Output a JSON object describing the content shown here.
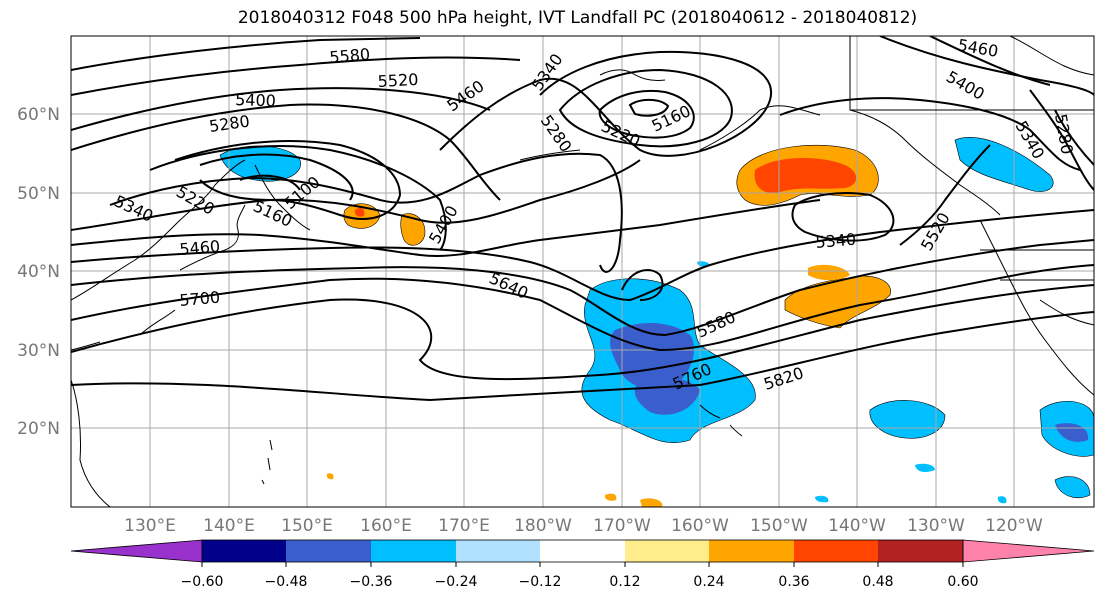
{
  "title": "2018040312 F048 500 hPa height, IVT Landfall PC (2018040612 - 2018040812)",
  "map": {
    "lat_labels": [
      "60°N",
      "50°N",
      "40°N",
      "30°N",
      "20°N"
    ],
    "lon_labels": [
      "130°E",
      "140°E",
      "150°E",
      "160°E",
      "170°E",
      "180°W",
      "170°W",
      "160°W",
      "150°W",
      "140°W",
      "130°W",
      "120°W"
    ],
    "contour_labels": [
      "5580",
      "5520",
      "5460",
      "5400",
      "5340",
      "5280",
      "5220",
      "5160",
      "5100",
      "5460",
      "5700",
      "5640",
      "5580",
      "5760",
      "5820",
      "5400",
      "5340",
      "5280",
      "5220",
      "5160",
      "5340",
      "5520",
      "5460",
      "5400",
      "5340",
      "5280"
    ],
    "colors": {
      "contour": "#000000",
      "grid": "#a8a8a8",
      "coast": "#000000"
    }
  },
  "colorbar": {
    "tick_labels": [
      "−0.60",
      "−0.48",
      "−0.36",
      "−0.24",
      "−0.12",
      "0.12",
      "0.24",
      "0.36",
      "0.48",
      "0.60"
    ],
    "colors": [
      "#9932cc",
      "#00008b",
      "#3a5fcd",
      "#00bfff",
      "#b0e2ff",
      "#ffffff",
      "#ffec8b",
      "#ffa500",
      "#ff4500",
      "#b22222",
      "#ff82ab"
    ]
  }
}
